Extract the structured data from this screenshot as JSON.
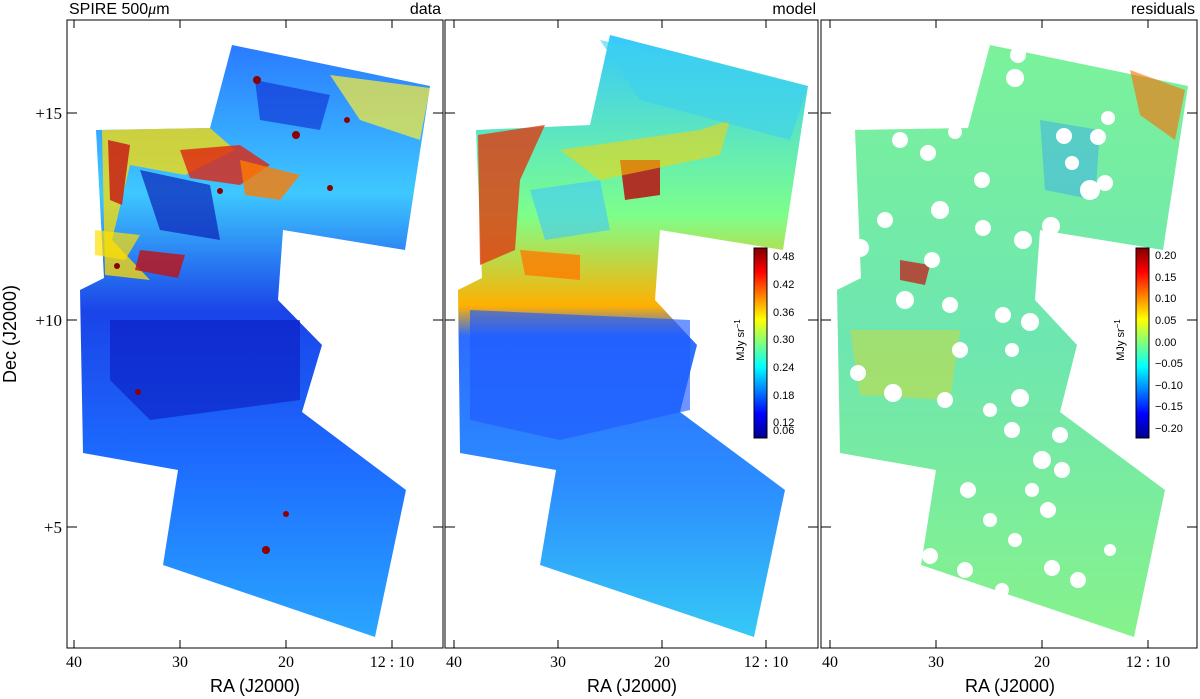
{
  "figure": {
    "panel_titles": {
      "data_left": "SPIRE 500",
      "data_mu": "μ",
      "data_m": "m",
      "data": "data",
      "model": "model",
      "residuals": "residuals"
    },
    "y_axis": {
      "title": "Dec (J2000)",
      "ticks": [
        "+15",
        "+10",
        "+5"
      ]
    },
    "x_axis": {
      "title": "RA (J2000)",
      "ticks": [
        "40",
        "30",
        "20",
        "12 : 10"
      ]
    },
    "colorbars": {
      "model": {
        "label": "MJy sr",
        "label_exp": "−1",
        "ticks": [
          "0.48",
          "0.42",
          "0.36",
          "0.30",
          "0.24",
          "0.18",
          "0.12",
          "0.06"
        ]
      },
      "residuals": {
        "label": "MJy sr",
        "label_exp": "−1",
        "ticks": [
          "0.20",
          "0.15",
          "0.10",
          "0.05",
          "0.00",
          "−0.05",
          "−0.10",
          "−0.15",
          "−0.20"
        ]
      }
    },
    "colors": {
      "jet_low": "#00008f",
      "jet_mid": "#7fff7f",
      "jet_high": "#7f0000",
      "masked": "#ffffff"
    }
  }
}
